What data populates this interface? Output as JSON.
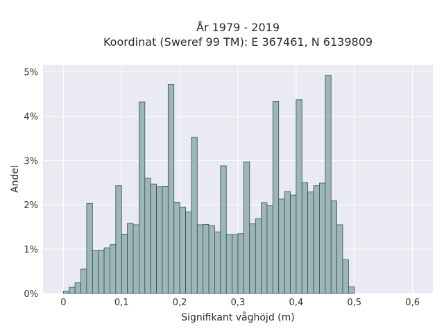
{
  "chart_data": {
    "type": "bar",
    "title_line1": "År 1979 - 2019",
    "title_line2": "Koordinat (Sweref 99 TM): E 367461, N 6139809",
    "xlabel": "Signifikant våghöjd (m)",
    "ylabel": "Andel",
    "xlim": [
      -0.035,
      0.635
    ],
    "ylim": [
      0,
      5.15
    ],
    "x_ticks": [
      0,
      0.1,
      0.2,
      0.3,
      0.4,
      0.5,
      0.6
    ],
    "x_tick_labels": [
      "0",
      "0,1",
      "0,2",
      "0,3",
      "0,4",
      "0,5",
      "0,6"
    ],
    "y_ticks": [
      0,
      1,
      2,
      3,
      4,
      5
    ],
    "y_tick_labels": [
      "0%",
      "1%",
      "2%",
      "3%",
      "4%",
      "5%"
    ],
    "bin_width": 0.01,
    "bin_start": 0.0,
    "values": [
      0.05,
      0.14,
      0.24,
      0.55,
      2.03,
      0.97,
      0.98,
      1.03,
      1.1,
      2.43,
      1.34,
      1.58,
      1.55,
      4.32,
      2.6,
      2.47,
      2.41,
      2.42,
      4.72,
      2.06,
      1.95,
      1.84,
      3.52,
      1.55,
      1.56,
      1.53,
      1.39,
      2.88,
      1.33,
      1.33,
      1.35,
      2.97,
      1.57,
      1.69,
      2.05,
      1.98,
      4.33,
      2.13,
      2.3,
      2.22,
      4.37,
      2.5,
      2.29,
      2.43,
      2.49,
      4.92,
      2.09,
      1.55,
      0.76,
      0.15
    ],
    "grid": true,
    "colors": {
      "bar_fill": "#9fb6b6",
      "bar_edge": "#2f4f4f",
      "plot_bg": "#eaeaf2",
      "grid": "#ffffff"
    }
  }
}
